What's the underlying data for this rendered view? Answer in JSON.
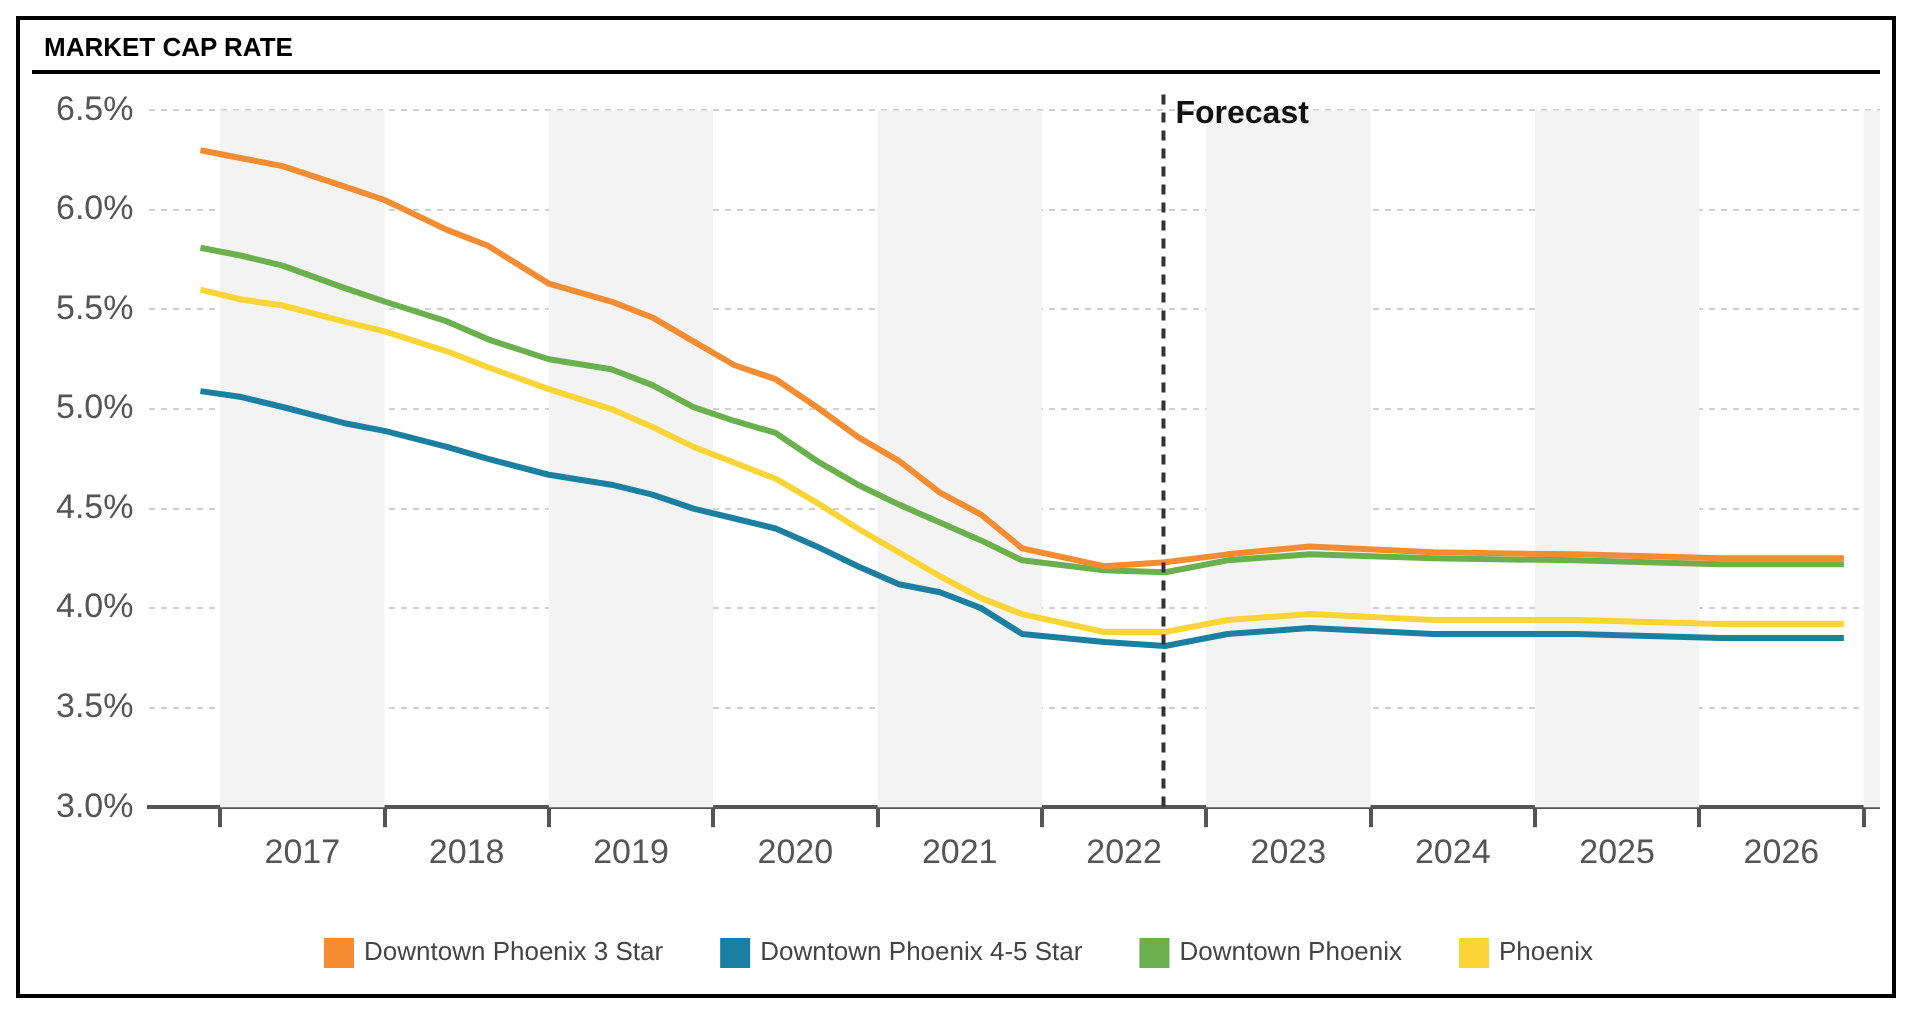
{
  "chart_data": {
    "type": "line",
    "title": "MARKET CAP RATE",
    "x": [
      2016.88,
      2017.13,
      2017.38,
      2017.75,
      2018.0,
      2018.38,
      2018.63,
      2019.0,
      2019.38,
      2019.63,
      2019.88,
      2020.13,
      2020.38,
      2020.63,
      2020.88,
      2021.13,
      2021.38,
      2021.63,
      2021.88,
      2022.38,
      2022.75,
      2023.13,
      2023.63,
      2024.38,
      2025.25,
      2026.13,
      2026.88
    ],
    "series": [
      {
        "name": "Downtown Phoenix 3 Star",
        "color": "#f58c32",
        "values": [
          6.3,
          6.26,
          6.22,
          6.12,
          6.05,
          5.9,
          5.82,
          5.63,
          5.54,
          5.46,
          5.34,
          5.22,
          5.15,
          5.01,
          4.86,
          4.74,
          4.58,
          4.47,
          4.3,
          4.21,
          4.23,
          4.27,
          4.31,
          4.28,
          4.27,
          4.25,
          4.25
        ]
      },
      {
        "name": "Downtown Phoenix 4-5 Star",
        "color": "#1a7fa0",
        "values": [
          5.09,
          5.06,
          5.01,
          4.93,
          4.89,
          4.81,
          4.75,
          4.67,
          4.62,
          4.57,
          4.5,
          4.45,
          4.4,
          4.31,
          4.21,
          4.12,
          4.08,
          4.0,
          3.87,
          3.83,
          3.81,
          3.87,
          3.9,
          3.87,
          3.87,
          3.85,
          3.85
        ]
      },
      {
        "name": "Downtown Phoenix",
        "color": "#6ab04c",
        "values": [
          5.81,
          5.77,
          5.72,
          5.61,
          5.54,
          5.44,
          5.35,
          5.25,
          5.2,
          5.12,
          5.01,
          4.94,
          4.88,
          4.74,
          4.62,
          4.52,
          4.43,
          4.34,
          4.24,
          4.19,
          4.18,
          4.24,
          4.27,
          4.25,
          4.24,
          4.22,
          4.22
        ]
      },
      {
        "name": "Phoenix",
        "color": "#fbd535",
        "values": [
          5.6,
          5.55,
          5.52,
          5.44,
          5.39,
          5.29,
          5.21,
          5.1,
          5.0,
          4.91,
          4.81,
          4.73,
          4.65,
          4.53,
          4.4,
          4.28,
          4.16,
          4.05,
          3.97,
          3.88,
          3.88,
          3.94,
          3.97,
          3.94,
          3.94,
          3.92,
          3.92
        ]
      }
    ],
    "xlim": [
      2016.57,
      2027.1
    ],
    "xticks": [
      {
        "value": 2017,
        "label": null
      },
      {
        "value": 2017.5,
        "label": "2017"
      },
      {
        "value": 2018,
        "label": null
      },
      {
        "value": 2018.5,
        "label": "2018"
      },
      {
        "value": 2019,
        "label": null
      },
      {
        "value": 2019.5,
        "label": "2019"
      },
      {
        "value": 2020,
        "label": null
      },
      {
        "value": 2020.5,
        "label": "2020"
      },
      {
        "value": 2021,
        "label": null
      },
      {
        "value": 2021.5,
        "label": "2021"
      },
      {
        "value": 2022,
        "label": null
      },
      {
        "value": 2022.5,
        "label": "2022"
      },
      {
        "value": 2023,
        "label": null
      },
      {
        "value": 2023.5,
        "label": "2023"
      },
      {
        "value": 2024,
        "label": null
      },
      {
        "value": 2024.5,
        "label": "2024"
      },
      {
        "value": 2025,
        "label": null
      },
      {
        "value": 2025.5,
        "label": "2025"
      },
      {
        "value": 2026,
        "label": null
      },
      {
        "value": 2026.5,
        "label": "2026"
      },
      {
        "value": 2027,
        "label": null
      }
    ],
    "ylim": [
      3.0,
      6.5
    ],
    "yticks": [
      {
        "value": 3.0,
        "label": "3.0%"
      },
      {
        "value": 3.5,
        "label": "3.5%"
      },
      {
        "value": 4.0,
        "label": "4.0%"
      },
      {
        "value": 4.5,
        "label": "4.5%"
      },
      {
        "value": 5.0,
        "label": "5.0%"
      },
      {
        "value": 5.5,
        "label": "5.5%"
      },
      {
        "value": 6.0,
        "label": "6.0%"
      },
      {
        "value": 6.5,
        "label": "6.5%"
      }
    ],
    "grid": "y",
    "bands": [
      {
        "axis": "x",
        "from": 2017,
        "to": 2018,
        "color": "#f3f3f3"
      },
      {
        "axis": "x",
        "from": 2019,
        "to": 2020,
        "color": "#f3f3f3"
      },
      {
        "axis": "x",
        "from": 2021,
        "to": 2022,
        "color": "#f3f3f3"
      },
      {
        "axis": "x",
        "from": 2023,
        "to": 2024,
        "color": "#f3f3f3"
      },
      {
        "axis": "x",
        "from": 2025,
        "to": 2026,
        "color": "#f3f3f3"
      },
      {
        "axis": "x",
        "from": 2027,
        "to": 2027.1,
        "color": "#f3f3f3"
      }
    ],
    "ref_lines": [
      {
        "axis": "x",
        "value": 2022.74,
        "label": "Forecast",
        "color": "#333333",
        "line_style": "dashed"
      }
    ],
    "legend": "bottom",
    "marker": "none",
    "line_style": "solid"
  }
}
